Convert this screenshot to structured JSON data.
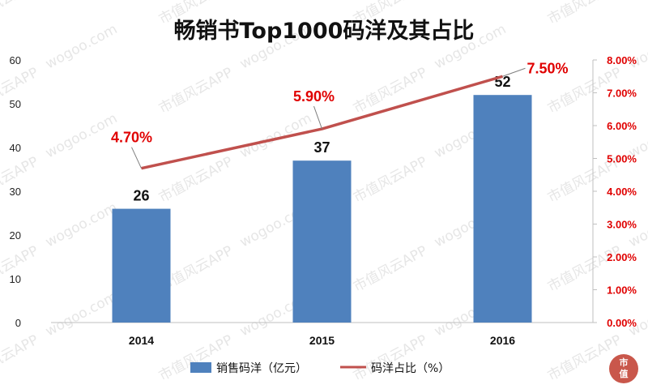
{
  "watermark": {
    "text": "市值风云APP",
    "url": "wogoo.com",
    "logo_text": "市值"
  },
  "chart_data": {
    "type": "bar",
    "title": "畅销书Top1000码洋及其占比",
    "categories": [
      "2014",
      "2015",
      "2016"
    ],
    "series": [
      {
        "name": "销售码洋（亿元）",
        "type": "bar",
        "axis": "left",
        "values": [
          26,
          37,
          52
        ],
        "data_labels": [
          "26",
          "37",
          "52"
        ],
        "color": "#4F81BD"
      },
      {
        "name": "码洋占比（%）",
        "type": "line",
        "axis": "right",
        "values": [
          4.7,
          5.9,
          7.5
        ],
        "data_labels": [
          "4.70%",
          "5.90%",
          "7.50%"
        ],
        "color": "#C0504D",
        "label_color": "#E00000"
      }
    ],
    "y_left": {
      "min": 0,
      "max": 60,
      "step": 10,
      "ticks": [
        "0",
        "10",
        "20",
        "30",
        "40",
        "50",
        "60"
      ]
    },
    "y_right": {
      "min": 0,
      "max": 8,
      "step": 1,
      "ticks": [
        "0.00%",
        "1.00%",
        "2.00%",
        "3.00%",
        "4.00%",
        "5.00%",
        "6.00%",
        "7.00%",
        "8.00%"
      ],
      "color": "#E00000"
    },
    "legend": {
      "position": "bottom"
    },
    "grid": false
  }
}
